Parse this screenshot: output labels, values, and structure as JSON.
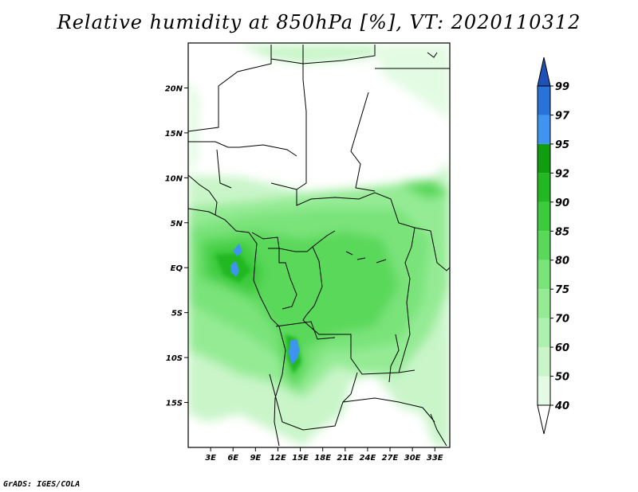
{
  "title": "Relative humidity at 850hPa [%], VT: 2020110312",
  "credit": "GrADS: IGES/COLA",
  "map": {
    "lon_range": [
      0,
      35
    ],
    "lat_range": [
      -20,
      25
    ],
    "lat_ticks": [
      "20N",
      "15N",
      "10N",
      "5N",
      "EQ",
      "5S",
      "10S",
      "15S"
    ],
    "lat_values": [
      20,
      15,
      10,
      5,
      0,
      -5,
      -10,
      -15
    ],
    "lon_ticks": [
      "3E",
      "6E",
      "9E",
      "12E",
      "15E",
      "18E",
      "21E",
      "24E",
      "27E",
      "30E",
      "33E"
    ],
    "lon_values": [
      3,
      6,
      9,
      12,
      15,
      18,
      21,
      24,
      27,
      30,
      33
    ]
  },
  "colorbar": {
    "labels": [
      "40",
      "50",
      "60",
      "70",
      "75",
      "80",
      "85",
      "90",
      "92",
      "95",
      "97",
      "99"
    ],
    "colors": [
      "#ffffff",
      "#e3fbe3",
      "#c9f5c9",
      "#aef0ae",
      "#94eb94",
      "#7ae37a",
      "#5ad85a",
      "#3ccb3c",
      "#22b822",
      "#109e10",
      "#3f94f0",
      "#2872d8",
      "#1f50b8"
    ]
  }
}
